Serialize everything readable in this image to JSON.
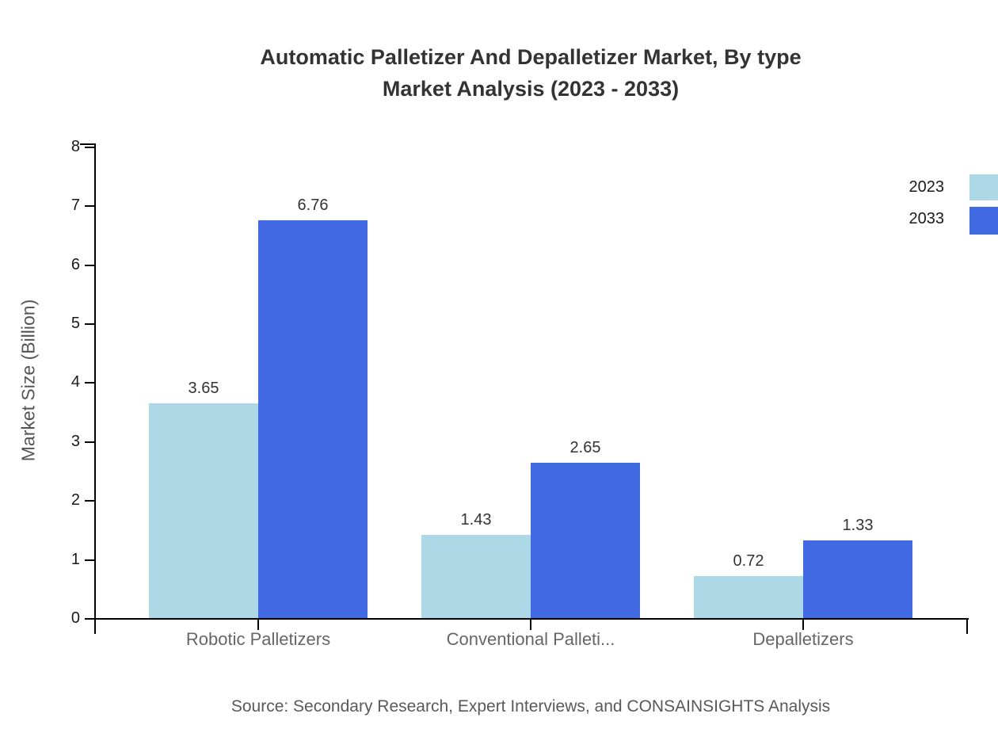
{
  "chart_data": {
    "type": "bar",
    "title": "Automatic Palletizer And Depalletizer Market, By type Market Analysis (2023 - 2033)",
    "title_line1": "Automatic Palletizer And Depalletizer Market, By type",
    "title_line2": "Market Analysis (2023 - 2033)",
    "categories": [
      "Robotic Palletizers",
      "Conventional Palleti...",
      "Depalletizers"
    ],
    "series": [
      {
        "name": "2023",
        "color": "#ADD8E6",
        "values": [
          3.65,
          1.43,
          0.72
        ]
      },
      {
        "name": "2033",
        "color": "#4169E1",
        "values": [
          6.76,
          2.65,
          1.33
        ]
      }
    ],
    "xlabel": "",
    "ylabel": "Market Size (Billion)",
    "ylim": [
      0,
      8
    ],
    "yticks": [
      0,
      1,
      2,
      3,
      4,
      5,
      6,
      7,
      8
    ],
    "grid": false,
    "legend_position": "top-right",
    "value_labels_shown": true,
    "axis_color": "#000000"
  },
  "footer": {
    "source_note": "Source: Secondary Research, Expert Interviews, and CONSAINSIGHTS Analysis"
  }
}
